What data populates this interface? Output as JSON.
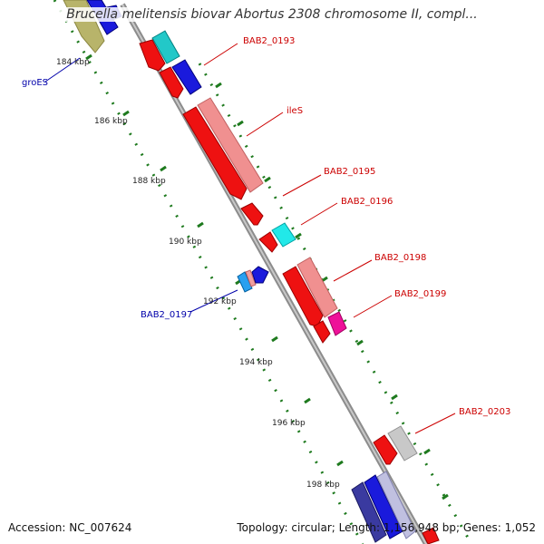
{
  "map": {
    "title": "Brucella melitensis biovar Abortus 2308 chromosome II, compl...",
    "accession": "Accession: NC_007624",
    "summary": "Topology: circular; Length: 1,156,948 bp; Genes: 1,052",
    "colors": {
      "backbone": "#8a8a8a",
      "tick": "#1e7a1e",
      "label_red": "#cc0000",
      "label_blue": "#0000aa"
    },
    "ticks": [
      "184 kbp",
      "186 kbp",
      "188 kbp",
      "190 kbp",
      "192 kbp",
      "194 kbp",
      "196 kbp",
      "198 kbp"
    ],
    "gene_labels": [
      {
        "text": "groES",
        "color": "blue"
      },
      {
        "text": "BAB2_0193",
        "color": "red"
      },
      {
        "text": "ileS",
        "color": "red"
      },
      {
        "text": "BAB2_0195",
        "color": "red"
      },
      {
        "text": "BAB2_0196",
        "color": "red"
      },
      {
        "text": "BAB2_0197",
        "color": "blue"
      },
      {
        "text": "BAB2_0198",
        "color": "red"
      },
      {
        "text": "BAB2_0199",
        "color": "red"
      },
      {
        "text": "BAB2_0203",
        "color": "red"
      }
    ]
  }
}
